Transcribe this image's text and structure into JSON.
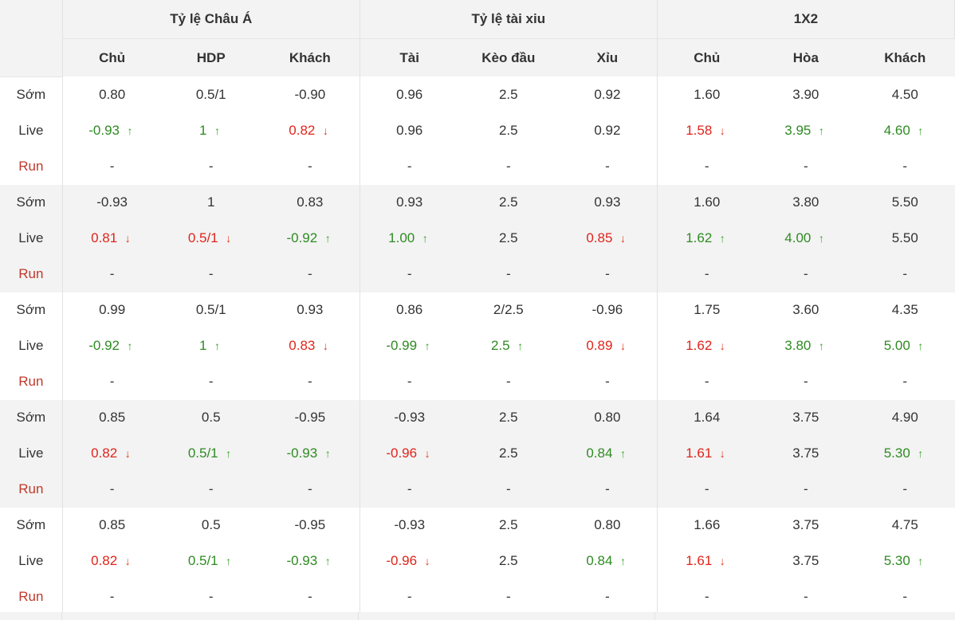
{
  "header": {
    "groups": [
      "Tỷ lệ Châu Á",
      "Tỷ lệ tài xiu",
      "1X2"
    ],
    "columns": [
      "Chủ",
      "HDP",
      "Khách",
      "Tài",
      "Kèo đầu",
      "Xỉu",
      "Chủ",
      "Hòa",
      "Khách"
    ]
  },
  "row_labels": {
    "early": "Sớm",
    "live": "Live",
    "run": "Run"
  },
  "blocks": [
    {
      "early": [
        "0.80",
        "0.5/1",
        "-0.90",
        "0.96",
        "2.5",
        "0.92",
        "1.60",
        "3.90",
        "4.50"
      ],
      "live": [
        {
          "v": "-0.93",
          "d": "up"
        },
        {
          "v": "1",
          "d": "up"
        },
        {
          "v": "0.82",
          "d": "down"
        },
        {
          "v": "0.96",
          "d": ""
        },
        {
          "v": "2.5",
          "d": ""
        },
        {
          "v": "0.92",
          "d": ""
        },
        {
          "v": "1.58",
          "d": "down"
        },
        {
          "v": "3.95",
          "d": "up"
        },
        {
          "v": "4.60",
          "d": "up"
        }
      ],
      "run": [
        "-",
        "-",
        "-",
        "-",
        "-",
        "-",
        "-",
        "-",
        "-"
      ]
    },
    {
      "early": [
        "-0.93",
        "1",
        "0.83",
        "0.93",
        "2.5",
        "0.93",
        "1.60",
        "3.80",
        "5.50"
      ],
      "live": [
        {
          "v": "0.81",
          "d": "down"
        },
        {
          "v": "0.5/1",
          "d": "down"
        },
        {
          "v": "-0.92",
          "d": "up"
        },
        {
          "v": "1.00",
          "d": "up"
        },
        {
          "v": "2.5",
          "d": ""
        },
        {
          "v": "0.85",
          "d": "down"
        },
        {
          "v": "1.62",
          "d": "up"
        },
        {
          "v": "4.00",
          "d": "up"
        },
        {
          "v": "5.50",
          "d": ""
        }
      ],
      "run": [
        "-",
        "-",
        "-",
        "-",
        "-",
        "-",
        "-",
        "-",
        "-"
      ]
    },
    {
      "early": [
        "0.99",
        "0.5/1",
        "0.93",
        "0.86",
        "2/2.5",
        "-0.96",
        "1.75",
        "3.60",
        "4.35"
      ],
      "live": [
        {
          "v": "-0.92",
          "d": "up"
        },
        {
          "v": "1",
          "d": "up"
        },
        {
          "v": "0.83",
          "d": "down"
        },
        {
          "v": "-0.99",
          "d": "up"
        },
        {
          "v": "2.5",
          "d": "up"
        },
        {
          "v": "0.89",
          "d": "down"
        },
        {
          "v": "1.62",
          "d": "down"
        },
        {
          "v": "3.80",
          "d": "up"
        },
        {
          "v": "5.00",
          "d": "up"
        }
      ],
      "run": [
        "-",
        "-",
        "-",
        "-",
        "-",
        "-",
        "-",
        "-",
        "-"
      ]
    },
    {
      "early": [
        "0.85",
        "0.5",
        "-0.95",
        "-0.93",
        "2.5",
        "0.80",
        "1.64",
        "3.75",
        "4.90"
      ],
      "live": [
        {
          "v": "0.82",
          "d": "down"
        },
        {
          "v": "0.5/1",
          "d": "up"
        },
        {
          "v": "-0.93",
          "d": "up"
        },
        {
          "v": "-0.96",
          "d": "down"
        },
        {
          "v": "2.5",
          "d": ""
        },
        {
          "v": "0.84",
          "d": "up"
        },
        {
          "v": "1.61",
          "d": "down"
        },
        {
          "v": "3.75",
          "d": ""
        },
        {
          "v": "5.30",
          "d": "up"
        }
      ],
      "run": [
        "-",
        "-",
        "-",
        "-",
        "-",
        "-",
        "-",
        "-",
        "-"
      ]
    },
    {
      "early": [
        "0.85",
        "0.5",
        "-0.95",
        "-0.93",
        "2.5",
        "0.80",
        "1.66",
        "3.75",
        "4.75"
      ],
      "live": [
        {
          "v": "0.82",
          "d": "down"
        },
        {
          "v": "0.5/1",
          "d": "up"
        },
        {
          "v": "-0.93",
          "d": "up"
        },
        {
          "v": "-0.96",
          "d": "down"
        },
        {
          "v": "2.5",
          "d": ""
        },
        {
          "v": "0.84",
          "d": "up"
        },
        {
          "v": "1.61",
          "d": "down"
        },
        {
          "v": "3.75",
          "d": ""
        },
        {
          "v": "5.30",
          "d": "up"
        }
      ],
      "run": [
        "-",
        "-",
        "-",
        "-",
        "-",
        "-",
        "-",
        "-",
        "-"
      ]
    }
  ],
  "colors": {
    "up": "#2e8b22",
    "down": "#e0241b",
    "run_label": "#c0392b",
    "band": "#f3f3f3"
  }
}
